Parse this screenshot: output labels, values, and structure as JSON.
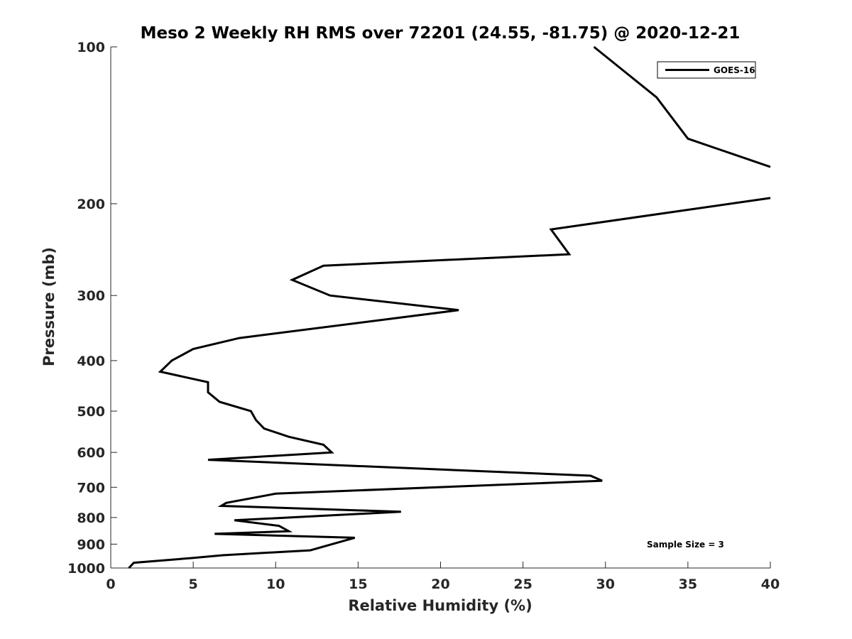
{
  "chart_data": {
    "type": "line",
    "title": "Meso 2 Weekly RH RMS over 72201 (24.55, -81.75) @ 2020-12-21",
    "xlabel": "Relative Humidity (%)",
    "ylabel": "Pressure (mb)",
    "xlim": [
      0,
      40
    ],
    "ylim": [
      100,
      1000
    ],
    "yscale": "log",
    "yreversed": true,
    "xticks": [
      0,
      5,
      10,
      15,
      20,
      25,
      30,
      35,
      40
    ],
    "xtick_labels": [
      "0",
      "5",
      "10",
      "15",
      "20",
      "25",
      "30",
      "35",
      "40"
    ],
    "yticks": [
      100,
      200,
      300,
      400,
      500,
      600,
      700,
      800,
      900,
      1000
    ],
    "ytick_labels": [
      "100",
      "200",
      "300",
      "400",
      "500",
      "600",
      "700",
      "800",
      "900",
      "1000"
    ],
    "grid": false,
    "legend_position": "top-right",
    "annotation": "Sample Size = 3",
    "line_color": "#000000",
    "series": [
      {
        "name": "GOES-16",
        "points": [
          [
            29.3,
            100
          ],
          [
            33.1,
            125
          ],
          [
            35.0,
            150
          ],
          [
            40.0,
            170
          ],
          [
            null,
            null
          ],
          [
            40.0,
            195
          ],
          [
            26.7,
            224
          ],
          [
            27.8,
            250
          ],
          [
            12.9,
            263
          ],
          [
            11.0,
            280
          ],
          [
            13.3,
            300
          ],
          [
            21.1,
            320
          ],
          [
            7.8,
            362
          ],
          [
            5.0,
            380
          ],
          [
            3.7,
            400
          ],
          [
            3.0,
            420
          ],
          [
            5.9,
            440
          ],
          [
            5.9,
            460
          ],
          [
            6.6,
            480
          ],
          [
            8.5,
            500
          ],
          [
            8.8,
            520
          ],
          [
            9.3,
            540
          ],
          [
            10.8,
            560
          ],
          [
            12.9,
            580
          ],
          [
            13.4,
            600
          ],
          [
            5.9,
            620
          ],
          [
            29.1,
            665
          ],
          [
            29.8,
            680
          ],
          [
            10.0,
            720
          ],
          [
            7.0,
            750
          ],
          [
            6.7,
            760
          ],
          [
            17.6,
            780
          ],
          [
            7.5,
            810
          ],
          [
            10.2,
            830
          ],
          [
            10.8,
            850
          ],
          [
            6.3,
            860
          ],
          [
            14.8,
            875
          ],
          [
            12.1,
            925
          ],
          [
            6.8,
            945
          ],
          [
            4.9,
            957
          ],
          [
            1.4,
            977
          ],
          [
            1.1,
            1000
          ]
        ]
      }
    ]
  }
}
